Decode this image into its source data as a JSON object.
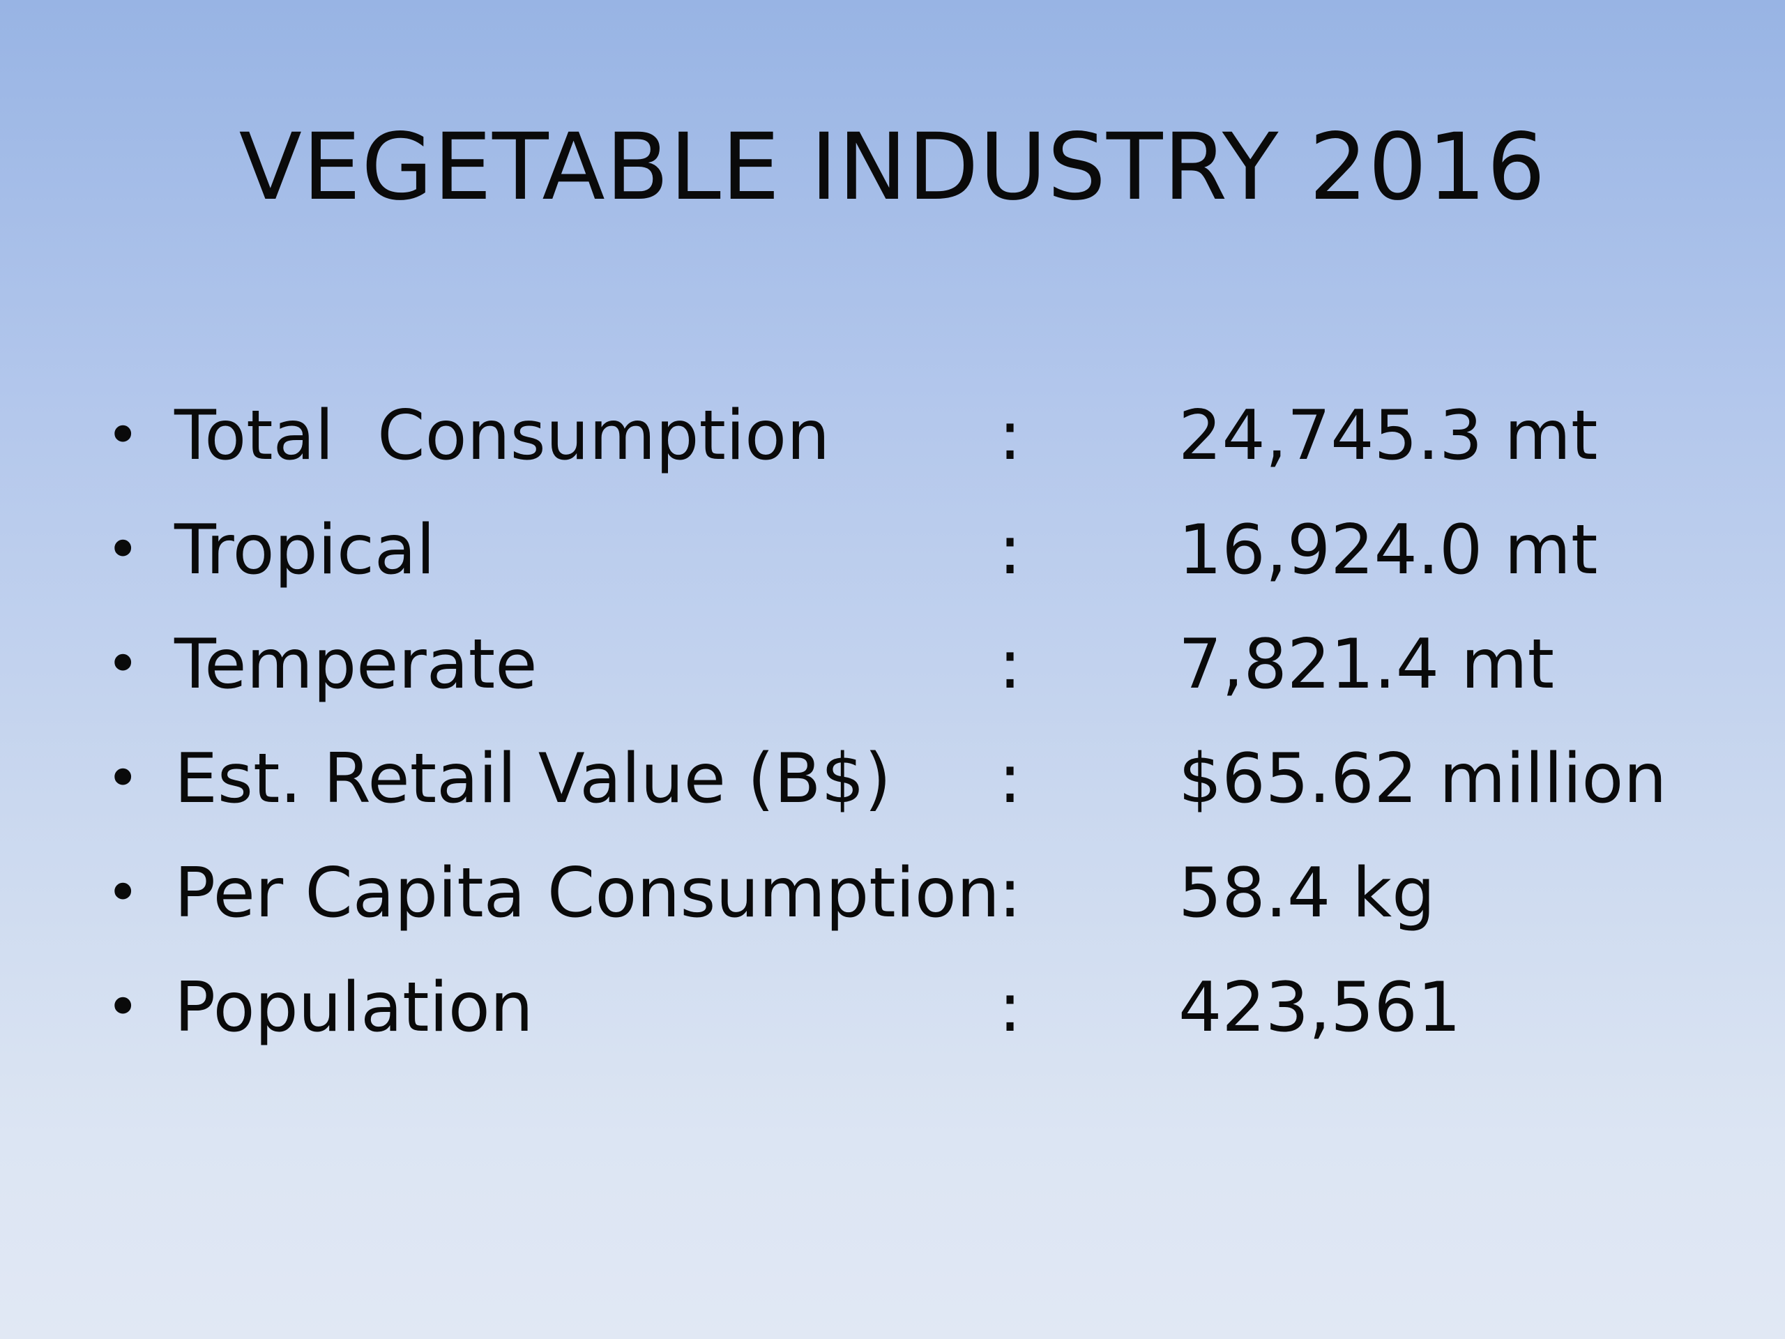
{
  "slide": {
    "title": "VEGETABLE INDUSTRY 2016",
    "bullet_glyph": "•",
    "separator": ":",
    "items": [
      {
        "label": "Total  Consumption",
        "value": "24,745.3 mt"
      },
      {
        "label": "Tropical",
        "value": "16,924.0 mt"
      },
      {
        "label": "Temperate",
        "value": "7,821.4 mt"
      },
      {
        "label": "Est. Retail Value (B$)",
        "value": "$65.62 million"
      },
      {
        "label": "Per Capita Consumption",
        "value": "58.4 kg"
      },
      {
        "label": "Population",
        "value": "423,561"
      }
    ]
  }
}
